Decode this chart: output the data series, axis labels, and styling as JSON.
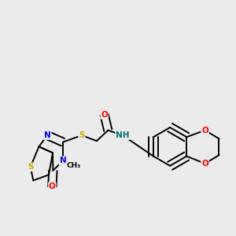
{
  "background_color": "#ebebeb",
  "atom_colors": {
    "S": "#ccaa00",
    "N": "#0000ee",
    "O": "#ff0000",
    "C": "#000000",
    "H": "#007070"
  },
  "bond_color": "#000000",
  "bond_width": 1.4,
  "dbo": 0.018
}
